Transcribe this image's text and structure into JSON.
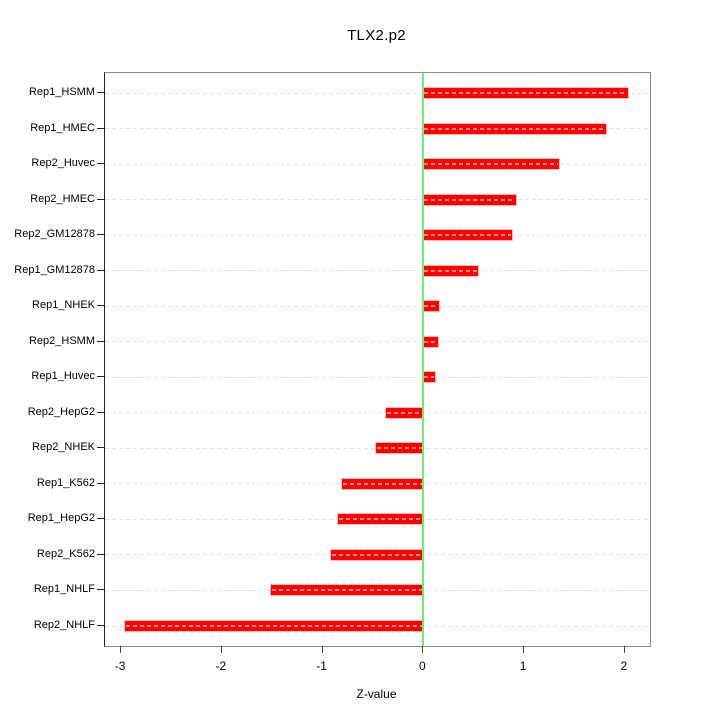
{
  "title": "TLX2.p2",
  "chart_data": {
    "type": "bar",
    "orientation": "horizontal",
    "title": "TLX2.p2",
    "xlabel": "Z-value",
    "ylabel": "",
    "categories": [
      "Rep1_HSMM",
      "Rep1_HMEC",
      "Rep2_Huvec",
      "Rep2_HMEC",
      "Rep2_GM12878",
      "Rep1_GM12878",
      "Rep1_NHEK",
      "Rep2_HSMM",
      "Rep1_Huvec",
      "Rep2_HepG2",
      "Rep2_NHEK",
      "Rep1_K562",
      "Rep1_HepG2",
      "Rep2_K562",
      "Rep1_NHLF",
      "Rep2_NHLF"
    ],
    "values": [
      2.03,
      1.81,
      1.35,
      0.92,
      0.88,
      0.54,
      0.16,
      0.15,
      0.12,
      -0.37,
      -0.47,
      -0.81,
      -0.85,
      -0.92,
      -1.51,
      -2.96
    ],
    "xlim": [
      -3.16,
      2.25
    ],
    "xticks": [
      -3,
      -2,
      -1,
      0,
      1,
      2
    ],
    "grid": true,
    "legend": "none",
    "bar_color": "#FF0000",
    "zero_line_color": "#70EE70",
    "gridline_color": "#E0E0E0",
    "frame_color": "#8C8C8C"
  }
}
